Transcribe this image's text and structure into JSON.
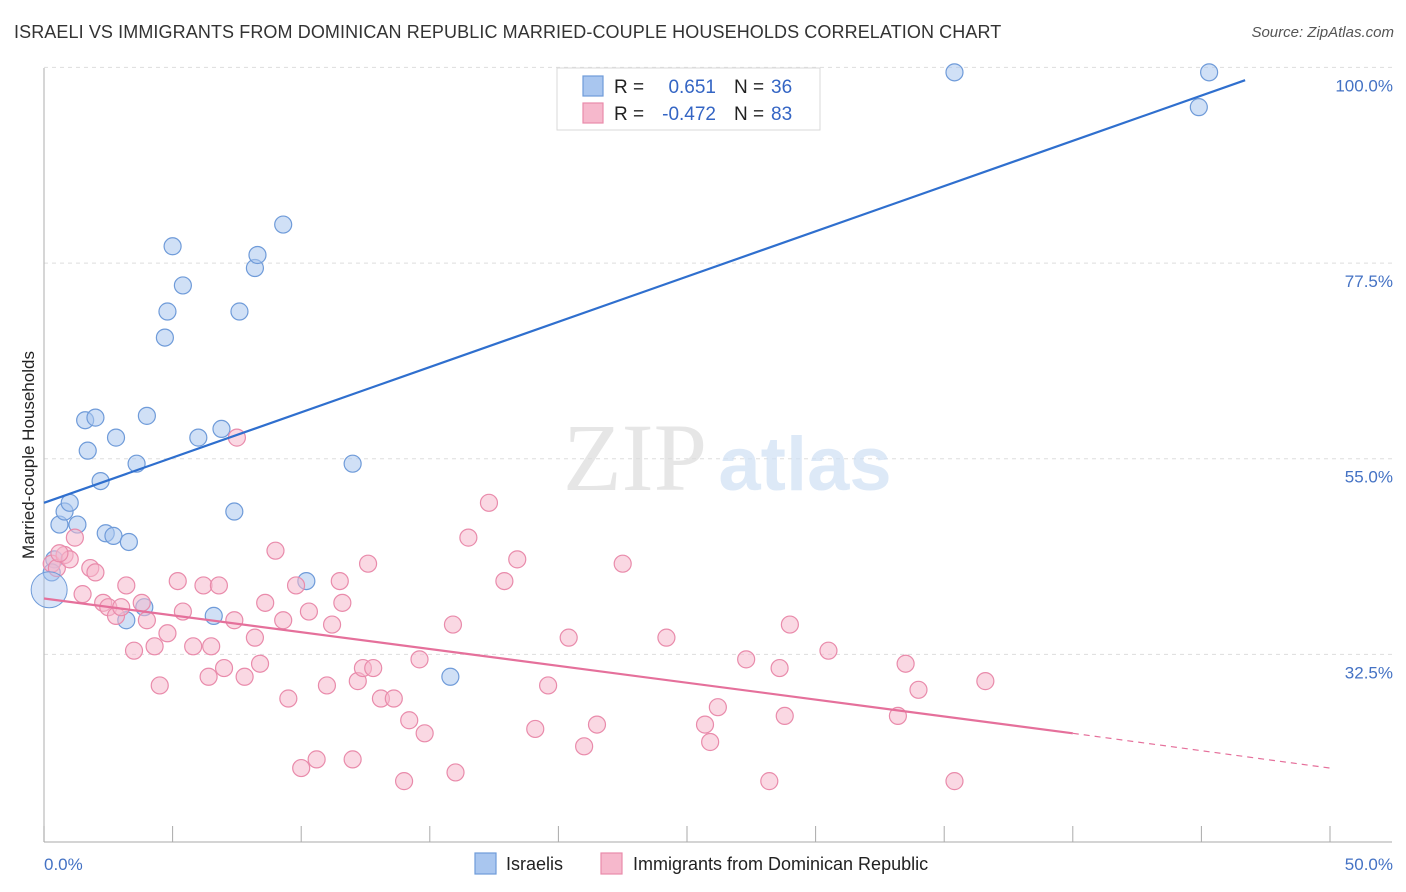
{
  "title": "ISRAELI VS IMMIGRANTS FROM DOMINICAN REPUBLIC MARRIED-COUPLE HOUSEHOLDS CORRELATION CHART",
  "source": "Source: ZipAtlas.com",
  "watermark": {
    "zip": "ZIP",
    "atlas": "atlas"
  },
  "colors": {
    "israelis_fill": "#a9c6ef",
    "israelis_stroke": "#6f9bd9",
    "israelis_line": "#2f6fce",
    "dominican_fill": "#f6b8cc",
    "dominican_stroke": "#e98bab",
    "dominican_line": "#e5709b",
    "tick_label": "#4472c4",
    "grid": "#dddddd"
  },
  "legend": {
    "items": [
      {
        "r_label": "R =",
        "r_value": "0.651",
        "n_label": "N =",
        "n_value": "36"
      },
      {
        "r_label": "R =",
        "r_value": "-0.472",
        "n_label": "N =",
        "n_value": "83"
      }
    ]
  },
  "bottom_legend": [
    "Israelis",
    "Immigrants from Dominican Republic"
  ],
  "chart_data": {
    "type": "scatter",
    "title": "ISRAELI VS IMMIGRANTS FROM DOMINICAN REPUBLIC MARRIED-COUPLE HOUSEHOLDS CORRELATION CHART",
    "xlabel": "",
    "ylabel": "Married-couple Households",
    "xlim": [
      0,
      50
    ],
    "ylim": [
      13,
      102
    ],
    "x_tick_labels": [
      "0.0%",
      "50.0%"
    ],
    "y_ticks": [
      32.5,
      55.0,
      77.5,
      100.0
    ],
    "y_tick_labels": [
      "32.5%",
      "55.0%",
      "77.5%",
      "100.0%"
    ],
    "grid": "horizontal dashed",
    "legend_position": "top-center",
    "series": [
      {
        "name": "Israelis",
        "r": 0.651,
        "n": 36,
        "trend": {
          "x": [
            0,
            46.7
          ],
          "y": [
            52.0,
            100.6
          ]
        },
        "points": [
          [
            0.4,
            45.5
          ],
          [
            0.6,
            49.5
          ],
          [
            0.8,
            51.0
          ],
          [
            1.0,
            52.0
          ],
          [
            1.3,
            49.5
          ],
          [
            1.6,
            61.5
          ],
          [
            1.7,
            58.0
          ],
          [
            2.0,
            61.8
          ],
          [
            2.2,
            54.5
          ],
          [
            2.4,
            48.5
          ],
          [
            2.7,
            48.2
          ],
          [
            2.8,
            59.5
          ],
          [
            3.2,
            38.5
          ],
          [
            3.3,
            47.5
          ],
          [
            3.6,
            56.5
          ],
          [
            3.9,
            40.0
          ],
          [
            4.0,
            62.0
          ],
          [
            4.7,
            71.0
          ],
          [
            4.8,
            74.0
          ],
          [
            5.0,
            81.5
          ],
          [
            5.4,
            77.0
          ],
          [
            6.0,
            59.5
          ],
          [
            6.6,
            39.0
          ],
          [
            6.9,
            60.5
          ],
          [
            7.4,
            51.0
          ],
          [
            7.6,
            74.0
          ],
          [
            8.2,
            79.0
          ],
          [
            8.3,
            80.5
          ],
          [
            9.3,
            84.0
          ],
          [
            10.2,
            43.0
          ],
          [
            12.0,
            56.5
          ],
          [
            15.8,
            32.0
          ],
          [
            35.4,
            101.5
          ],
          [
            44.9,
            97.5
          ],
          [
            45.3,
            101.5
          ],
          [
            0.3,
            44.0
          ]
        ]
      },
      {
        "name": "Immigrants from Dominican Republic",
        "r": -0.472,
        "n": 83,
        "trend": {
          "x": [
            0,
            40
          ],
          "y": [
            41.0,
            25.5
          ]
        },
        "trend_dashed": {
          "x": [
            40,
            50
          ],
          "y": [
            25.5,
            21.5
          ]
        },
        "points": [
          [
            0.3,
            45.0
          ],
          [
            0.5,
            44.5
          ],
          [
            0.8,
            46.0
          ],
          [
            1.0,
            45.5
          ],
          [
            1.2,
            48.0
          ],
          [
            1.5,
            41.5
          ],
          [
            1.8,
            44.5
          ],
          [
            2.0,
            44.0
          ],
          [
            2.3,
            40.5
          ],
          [
            2.5,
            40.0
          ],
          [
            2.8,
            39.0
          ],
          [
            3.0,
            40.0
          ],
          [
            3.2,
            42.5
          ],
          [
            3.5,
            35.0
          ],
          [
            3.8,
            40.5
          ],
          [
            4.0,
            38.5
          ],
          [
            4.3,
            35.5
          ],
          [
            4.5,
            31.0
          ],
          [
            4.8,
            37.0
          ],
          [
            5.2,
            43.0
          ],
          [
            5.4,
            39.5
          ],
          [
            5.8,
            35.5
          ],
          [
            6.2,
            42.5
          ],
          [
            6.4,
            32.0
          ],
          [
            6.5,
            35.5
          ],
          [
            6.8,
            42.5
          ],
          [
            7.0,
            33.0
          ],
          [
            7.4,
            38.5
          ],
          [
            7.5,
            59.5
          ],
          [
            7.8,
            32.0
          ],
          [
            8.2,
            36.5
          ],
          [
            8.4,
            33.5
          ],
          [
            8.6,
            40.5
          ],
          [
            9.0,
            46.5
          ],
          [
            9.3,
            38.5
          ],
          [
            9.5,
            29.5
          ],
          [
            9.8,
            42.5
          ],
          [
            10.0,
            21.5
          ],
          [
            10.3,
            39.5
          ],
          [
            10.6,
            22.5
          ],
          [
            11.0,
            31.0
          ],
          [
            11.2,
            38.0
          ],
          [
            11.5,
            43.0
          ],
          [
            11.6,
            40.5
          ],
          [
            12.0,
            22.5
          ],
          [
            12.2,
            31.5
          ],
          [
            12.4,
            33.0
          ],
          [
            12.6,
            45.0
          ],
          [
            12.8,
            33.0
          ],
          [
            13.1,
            29.5
          ],
          [
            13.6,
            29.5
          ],
          [
            14.0,
            20.0
          ],
          [
            14.2,
            27.0
          ],
          [
            14.6,
            34.0
          ],
          [
            14.8,
            25.5
          ],
          [
            15.9,
            38.0
          ],
          [
            16.0,
            21.0
          ],
          [
            16.5,
            48.0
          ],
          [
            17.3,
            52.0
          ],
          [
            17.9,
            43.0
          ],
          [
            18.4,
            45.5
          ],
          [
            19.1,
            26.0
          ],
          [
            19.6,
            31.0
          ],
          [
            20.4,
            36.5
          ],
          [
            21.0,
            24.0
          ],
          [
            21.5,
            26.5
          ],
          [
            22.5,
            45.0
          ],
          [
            24.2,
            36.5
          ],
          [
            25.7,
            26.5
          ],
          [
            25.9,
            24.5
          ],
          [
            26.2,
            28.5
          ],
          [
            27.3,
            34.0
          ],
          [
            28.2,
            20.0
          ],
          [
            28.6,
            33.0
          ],
          [
            28.8,
            27.5
          ],
          [
            29.0,
            38.0
          ],
          [
            30.5,
            35.0
          ],
          [
            33.2,
            27.5
          ],
          [
            33.5,
            33.5
          ],
          [
            34.0,
            30.5
          ],
          [
            35.4,
            20.0
          ],
          [
            36.6,
            31.5
          ],
          [
            0.6,
            46.2
          ]
        ]
      }
    ]
  }
}
